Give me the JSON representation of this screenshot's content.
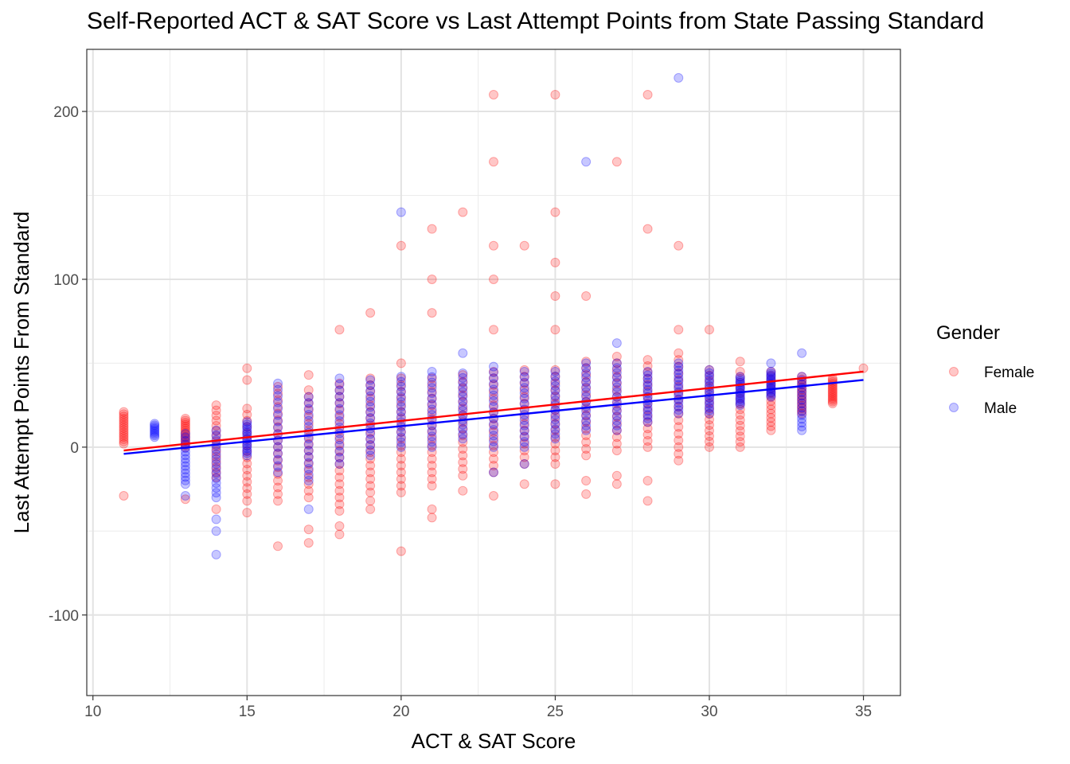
{
  "chart_data": {
    "type": "scatter",
    "title": "Self-Reported ACT & SAT Score vs Last Attempt Points from State Passing Standard",
    "xlabel": "ACT & SAT Score",
    "ylabel": "Last Attempt Points From Standard",
    "xlim": [
      9.8,
      36.2
    ],
    "ylim": [
      -148,
      237
    ],
    "x_ticks": [
      10,
      15,
      20,
      25,
      30,
      35
    ],
    "y_ticks": [
      -100,
      0,
      100,
      200
    ],
    "x_tick_labels": [
      "10",
      "15",
      "20",
      "25",
      "30",
      "35"
    ],
    "y_tick_labels": [
      "-100",
      "0",
      "100",
      "200"
    ],
    "grid": true,
    "legend": {
      "title": "Gender",
      "position": "right"
    },
    "series": [
      {
        "name": "Female",
        "color": "#ff0000",
        "alpha": 0.22,
        "trend": {
          "x": [
            11,
            35
          ],
          "y": [
            -2,
            45
          ]
        },
        "columns": [
          {
            "x": 11,
            "min": 2,
            "max": 21,
            "extra": [
              -29
            ]
          },
          {
            "x": 13,
            "min": 0,
            "max": 17,
            "extra": [
              -31
            ]
          },
          {
            "x": 14,
            "min": -18,
            "max": 25,
            "extra": [
              -37
            ]
          },
          {
            "x": 15,
            "min": -28,
            "max": 23,
            "extra": [
              47,
              40,
              -32,
              -39
            ]
          },
          {
            "x": 16,
            "min": -32,
            "max": 37,
            "extra": [
              -59
            ]
          },
          {
            "x": 17,
            "min": -30,
            "max": 34,
            "extra": [
              43,
              -49,
              -57
            ]
          },
          {
            "x": 18,
            "min": -38,
            "max": 40,
            "extra": [
              70,
              -47,
              -52
            ]
          },
          {
            "x": 19,
            "min": -27,
            "max": 43,
            "extra": [
              80,
              -32,
              -37
            ]
          },
          {
            "x": 20,
            "min": -27,
            "max": 42,
            "extra": [
              50,
              120,
              -62
            ]
          },
          {
            "x": 21,
            "min": -23,
            "max": 43,
            "extra": [
              80,
              100,
              130,
              -37,
              -42
            ]
          },
          {
            "x": 22,
            "min": -17,
            "max": 44,
            "extra": [
              140,
              -26
            ]
          },
          {
            "x": 23,
            "min": -15,
            "max": 45,
            "extra": [
              70,
              100,
              120,
              170,
              210,
              -29
            ]
          },
          {
            "x": 24,
            "min": -10,
            "max": 48,
            "extra": [
              120,
              -22
            ]
          },
          {
            "x": 25,
            "min": -10,
            "max": 47,
            "extra": [
              70,
              90,
              110,
              140,
              210,
              -22
            ]
          },
          {
            "x": 26,
            "min": -5,
            "max": 53,
            "extra": [
              90,
              -28,
              -20
            ]
          },
          {
            "x": 27,
            "min": -2,
            "max": 55,
            "extra": [
              170,
              -22,
              -17
            ]
          },
          {
            "x": 28,
            "min": 0,
            "max": 52,
            "extra": [
              130,
              210,
              -32,
              -20
            ]
          },
          {
            "x": 29,
            "min": -4,
            "max": 57,
            "extra": [
              70,
              120,
              -8
            ]
          },
          {
            "x": 30,
            "min": 0,
            "max": 46,
            "extra": [
              70
            ]
          },
          {
            "x": 31,
            "min": 0,
            "max": 45,
            "extra": [
              51
            ]
          },
          {
            "x": 32,
            "min": 10,
            "max": 45,
            "extra": []
          },
          {
            "x": 33,
            "min": 20,
            "max": 42,
            "extra": []
          },
          {
            "x": 34,
            "min": 26,
            "max": 41,
            "extra": []
          },
          {
            "x": 35,
            "min": 47,
            "max": 47,
            "extra": []
          }
        ]
      },
      {
        "name": "Male",
        "color": "#0000ff",
        "alpha": 0.22,
        "trend": {
          "x": [
            11,
            35
          ],
          "y": [
            -4,
            40
          ]
        },
        "columns": [
          {
            "x": 12,
            "min": 6,
            "max": 14,
            "extra": []
          },
          {
            "x": 13,
            "min": -22,
            "max": 8,
            "extra": [
              -29
            ]
          },
          {
            "x": 14,
            "min": -30,
            "max": 10,
            "extra": [
              -43,
              -50,
              -64
            ]
          },
          {
            "x": 15,
            "min": -5,
            "max": 15,
            "extra": []
          },
          {
            "x": 16,
            "min": -15,
            "max": 38,
            "extra": []
          },
          {
            "x": 17,
            "min": -20,
            "max": 30,
            "extra": [
              -37
            ]
          },
          {
            "x": 18,
            "min": -10,
            "max": 41,
            "extra": []
          },
          {
            "x": 19,
            "min": -5,
            "max": 40,
            "extra": []
          },
          {
            "x": 20,
            "min": 0,
            "max": 42,
            "extra": [
              140
            ]
          },
          {
            "x": 21,
            "min": 0,
            "max": 45,
            "extra": []
          },
          {
            "x": 22,
            "min": 5,
            "max": 44,
            "extra": [
              56
            ]
          },
          {
            "x": 23,
            "min": 0,
            "max": 48,
            "extra": [
              -15
            ]
          },
          {
            "x": 24,
            "min": 0,
            "max": 45,
            "extra": [
              -10
            ]
          },
          {
            "x": 25,
            "min": 5,
            "max": 45,
            "extra": []
          },
          {
            "x": 26,
            "min": 10,
            "max": 50,
            "extra": [
              170
            ]
          },
          {
            "x": 27,
            "min": 10,
            "max": 50,
            "extra": [
              62
            ]
          },
          {
            "x": 28,
            "min": 15,
            "max": 45,
            "extra": []
          },
          {
            "x": 29,
            "min": 20,
            "max": 50,
            "extra": [
              220
            ]
          },
          {
            "x": 30,
            "min": 20,
            "max": 46,
            "extra": []
          },
          {
            "x": 31,
            "min": 25,
            "max": 42,
            "extra": []
          },
          {
            "x": 32,
            "min": 30,
            "max": 45,
            "extra": [
              50
            ]
          },
          {
            "x": 33,
            "min": 10,
            "max": 42,
            "extra": [
              56
            ]
          }
        ]
      }
    ]
  }
}
